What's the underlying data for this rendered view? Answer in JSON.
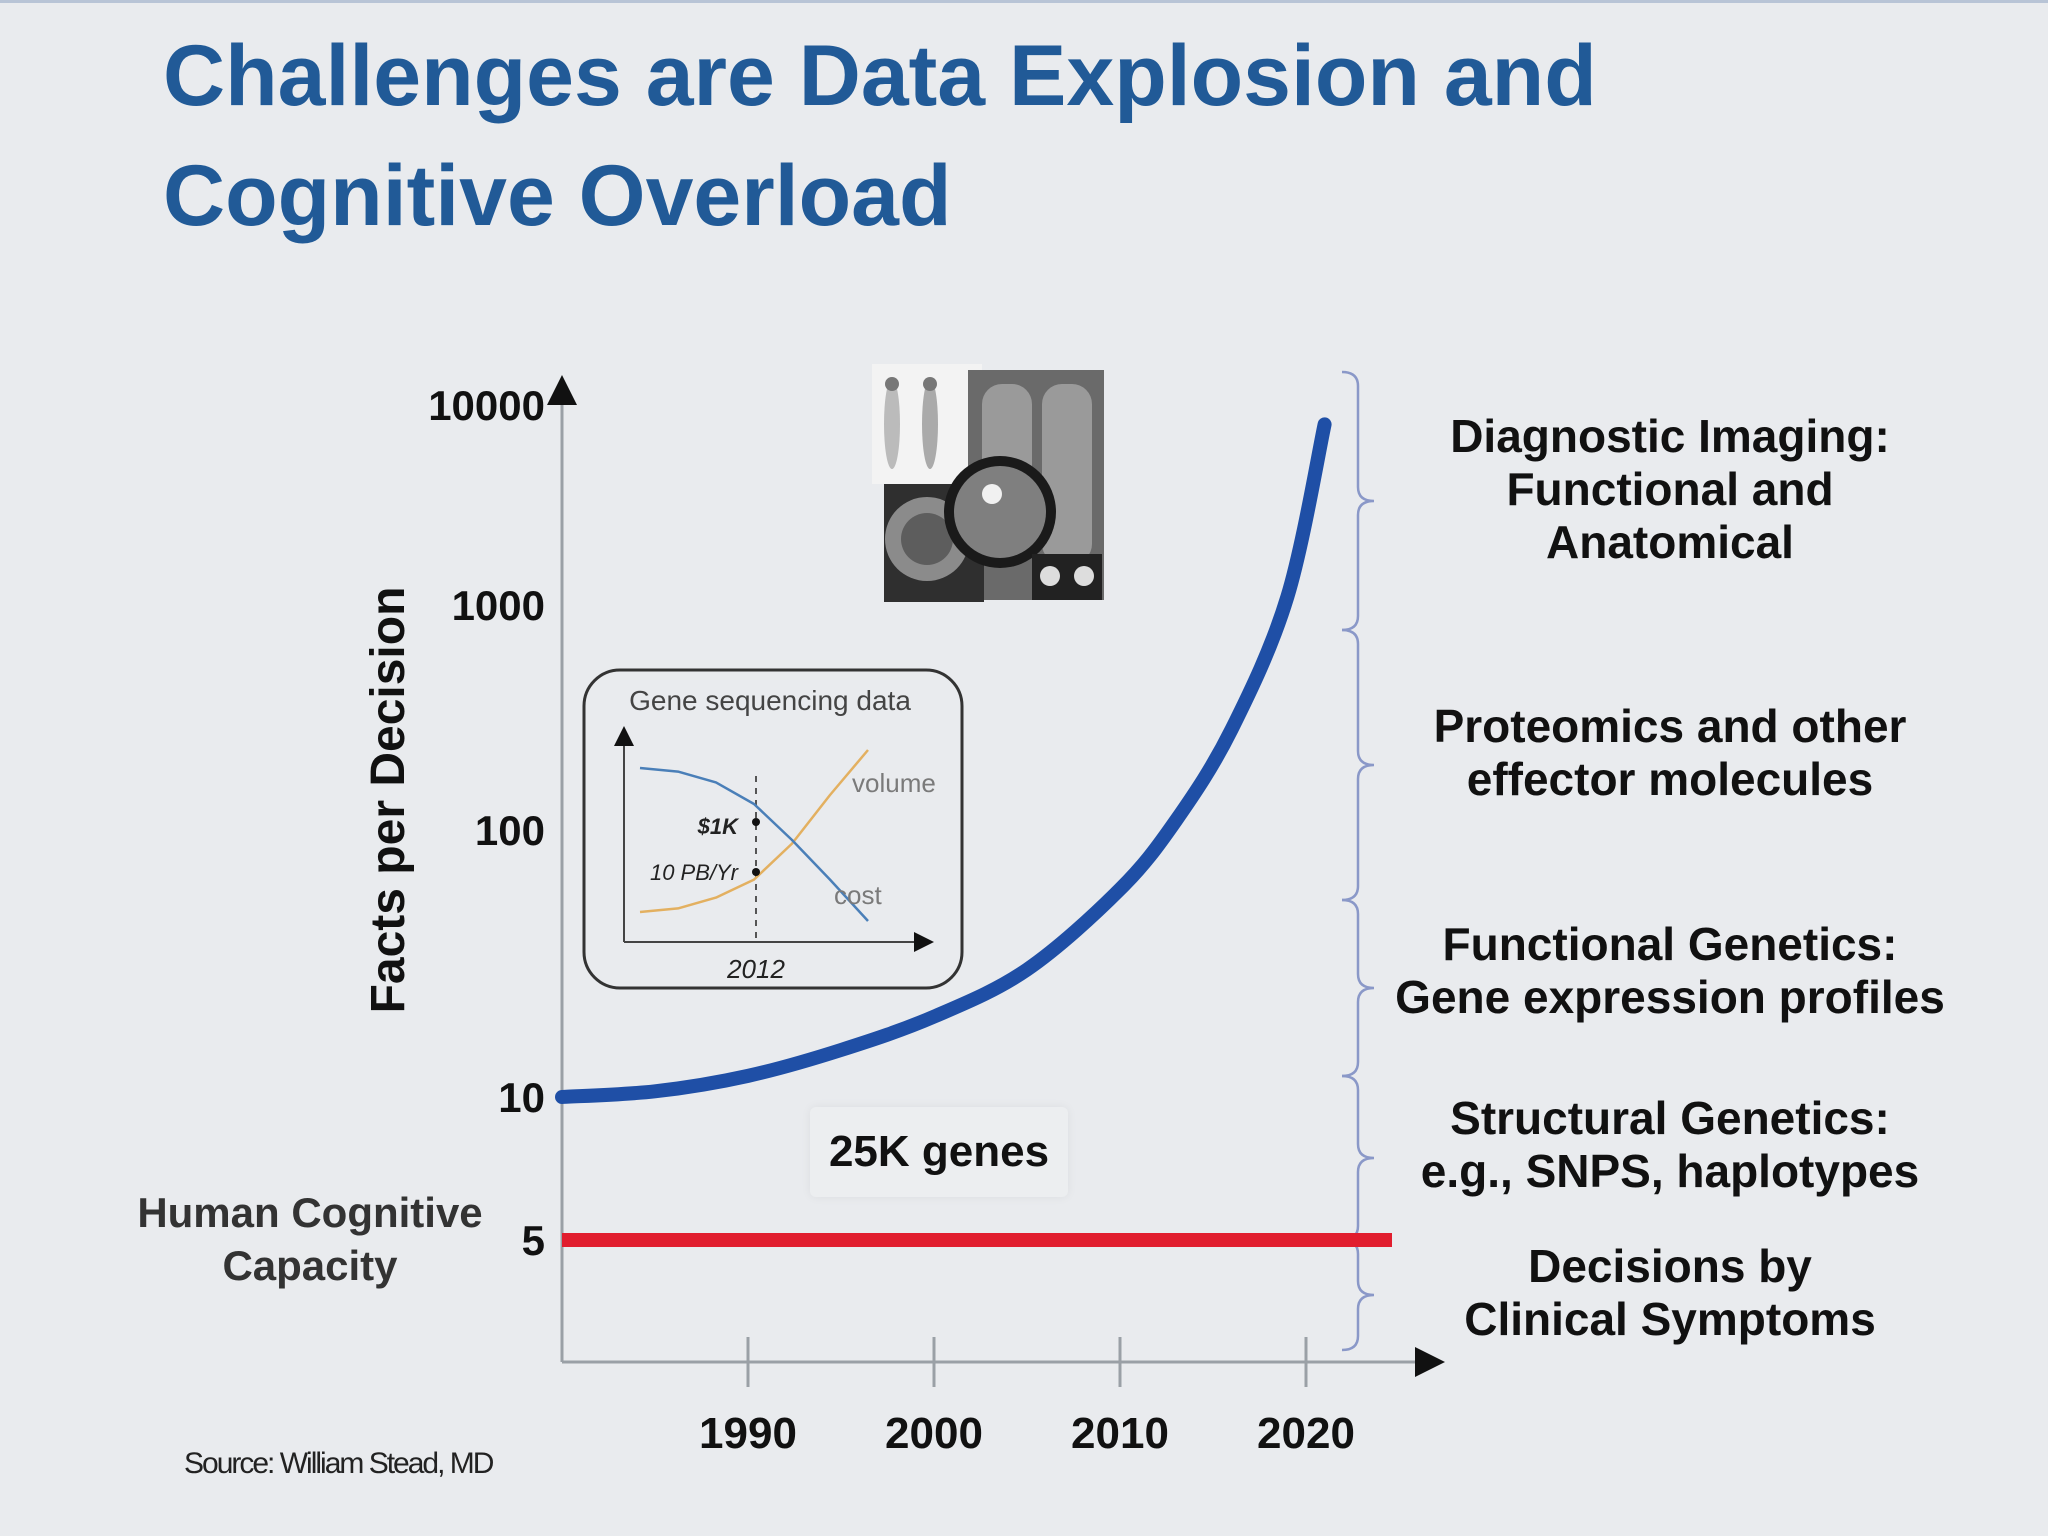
{
  "slide": {
    "title_line1": "Challenges are Data Explosion and",
    "title_line2": "Cognitive Overload",
    "source": "Source: William Stead, MD"
  },
  "annotations": {
    "capacity_line1": "Human Cognitive",
    "capacity_line2": "Capacity",
    "genes": "25K genes"
  },
  "categories": [
    {
      "lines": [
        "Diagnostic Imaging:",
        "Functional and",
        "Anatomical"
      ]
    },
    {
      "lines": [
        "Proteomics and other",
        "effector molecules"
      ]
    },
    {
      "lines": [
        "Functional Genetics:",
        "Gene expression profiles"
      ]
    },
    {
      "lines": [
        "Structural Genetics:",
        "e.g., SNPS, haplotypes"
      ]
    },
    {
      "lines": [
        "Decisions by",
        "Clinical Symptoms"
      ]
    }
  ],
  "images": {
    "imaging_icon": "medical-imaging-collage"
  },
  "colors": {
    "title": "#215a97",
    "curve": "#1f4fa6",
    "capacity": "#e11d2e",
    "brace": "#8a98c8",
    "inset_volume": "#e3b060",
    "inset_cost": "#4a7fb8"
  },
  "chart_data": [
    {
      "type": "line",
      "title": "",
      "xlabel": "",
      "ylabel": "Facts per Decision",
      "x_ticks": [
        1990,
        2000,
        2010,
        2020
      ],
      "y_scale": "log",
      "y_ticks": [
        5,
        10,
        100,
        1000,
        10000
      ],
      "y_tick_labels": [
        "5",
        "10",
        "100",
        "1000",
        "10000"
      ],
      "xlim": [
        1980,
        2025
      ],
      "series": [
        {
          "x": [
            1980,
            1985,
            1990,
            1995,
            2000,
            2005,
            2010,
            2013,
            2016,
            2019,
            2021
          ],
          "values": [
            10,
            10.5,
            12,
            15,
            20,
            30,
            60,
            110,
            280,
            1100,
            8000
          ]
        },
        {
          "x": [
            1980,
            2025
          ],
          "values": [
            5,
            5
          ]
        }
      ],
      "grid": false
    },
    {
      "type": "line",
      "title": "Gene sequencing data",
      "x_ticks_labels": [
        "2012"
      ],
      "series": [
        {
          "name": "volume",
          "x": [
            0,
            1,
            2,
            3,
            4,
            5,
            6
          ],
          "values": [
            0.1,
            0.12,
            0.18,
            0.28,
            0.48,
            0.75,
            1.0
          ]
        },
        {
          "name": "cost",
          "x": [
            0,
            1,
            2,
            3,
            4,
            5,
            6
          ],
          "values": [
            0.9,
            0.88,
            0.82,
            0.7,
            0.5,
            0.28,
            0.05
          ]
        }
      ],
      "annotations": [
        "$1K",
        "10 PB/Yr"
      ]
    }
  ]
}
